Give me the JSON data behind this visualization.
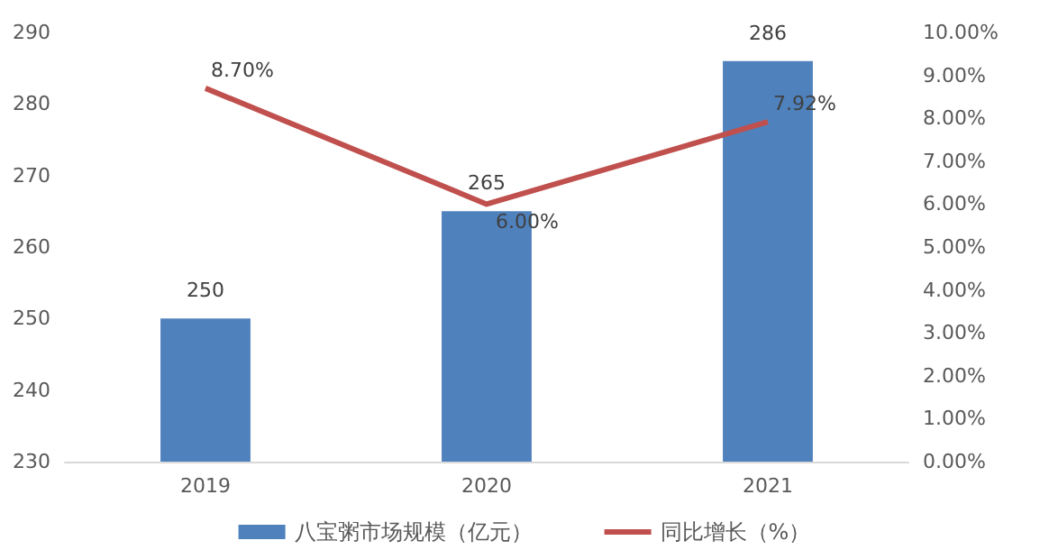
{
  "chart_data": {
    "type": "bar",
    "categories": [
      "2019",
      "2020",
      "2021"
    ],
    "series": [
      {
        "name": "八宝粥市场规模（亿元）",
        "color": "#4f81bd",
        "values": [
          250,
          265,
          286
        ],
        "value_labels": [
          "250",
          "265",
          "286"
        ]
      },
      {
        "name": "同比增长（%）",
        "type": "line",
        "axis": "y2",
        "color": "#c0504d",
        "values": [
          8.7,
          6.0,
          7.92
        ],
        "value_labels": [
          "8.70%",
          "6.00%",
          "7.92%"
        ],
        "marker": "none"
      }
    ],
    "ylim": [
      230,
      290
    ],
    "yticks": [
      230,
      240,
      250,
      260,
      270,
      280,
      290
    ],
    "y2lim": [
      0,
      10
    ],
    "y2ticks": [
      {
        "value": 0,
        "label": "0.00%"
      },
      {
        "value": 1,
        "label": "1.00%"
      },
      {
        "value": 2,
        "label": "2.00%"
      },
      {
        "value": 3,
        "label": "3.00%"
      },
      {
        "value": 4,
        "label": "4.00%"
      },
      {
        "value": 5,
        "label": "5.00%"
      },
      {
        "value": 6,
        "label": "6.00%"
      },
      {
        "value": 7,
        "label": "7.00%"
      },
      {
        "value": 8,
        "label": "8.00%"
      },
      {
        "value": 9,
        "label": "9.00%"
      },
      {
        "value": 10,
        "label": "10.00%"
      }
    ],
    "grid": false,
    "legend": "bottom"
  }
}
